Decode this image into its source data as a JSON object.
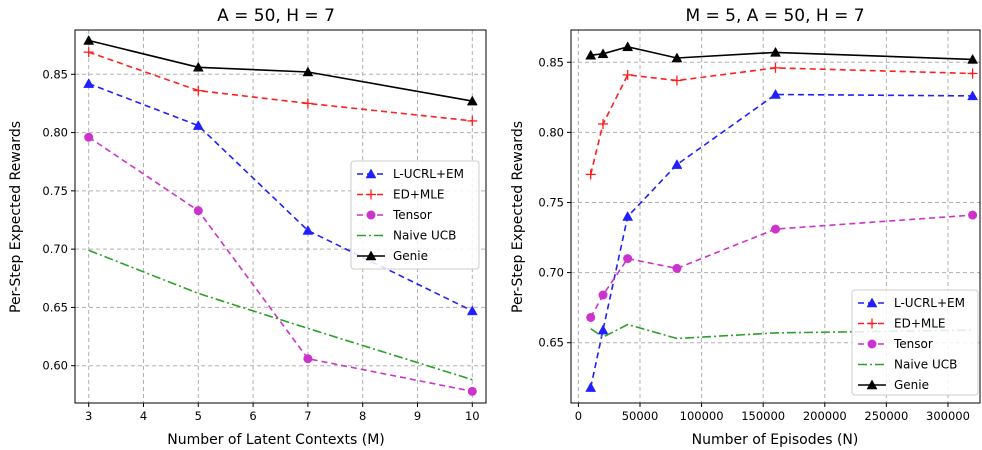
{
  "styles": {
    "L-UCRL+EM": {
      "color": "#1f1fff",
      "dash": "6,4",
      "marker": "triangle"
    },
    "ED+MLE": {
      "color": "#ff1f1f",
      "dash": "6,4",
      "marker": "plus"
    },
    "Tensor": {
      "color": "#cc33cc",
      "dash": "6,4",
      "marker": "circle"
    },
    "Naive UCB": {
      "color": "#2ca02c",
      "dash": "9,3,2,3",
      "marker": "none"
    },
    "Genie": {
      "color": "#000000",
      "dash": "",
      "marker": "triangle"
    }
  },
  "chart_data": [
    {
      "type": "line",
      "title": "A = 50, H = 7",
      "xlabel": "Number of Latent Contexts (M)",
      "ylabel": "Per-Step Expected Rewards",
      "xlim": [
        2.75,
        10.25
      ],
      "ylim": [
        0.568,
        0.888
      ],
      "xticks": [
        3,
        4,
        5,
        6,
        7,
        8,
        9,
        10
      ],
      "xtick_labels": [
        "3",
        "4",
        "5",
        "6",
        "7",
        "8",
        "9",
        "10"
      ],
      "yticks": [
        0.6,
        0.65,
        0.7,
        0.75,
        0.8,
        0.85
      ],
      "ytick_labels": [
        "0.60",
        "0.65",
        "0.70",
        "0.75",
        "0.80",
        "0.85"
      ],
      "grid": true,
      "legend_position": "center-right",
      "series": [
        {
          "name": "L-UCRL+EM",
          "x": [
            3,
            5,
            7,
            10
          ],
          "values": [
            0.842,
            0.806,
            0.716,
            0.647
          ]
        },
        {
          "name": "ED+MLE",
          "x": [
            3,
            5,
            7,
            10
          ],
          "values": [
            0.869,
            0.836,
            0.825,
            0.81
          ]
        },
        {
          "name": "Tensor",
          "x": [
            3,
            5,
            7,
            10
          ],
          "values": [
            0.796,
            0.733,
            0.606,
            0.578
          ]
        },
        {
          "name": "Naive UCB",
          "x": [
            3,
            5,
            7,
            10
          ],
          "values": [
            0.699,
            0.662,
            0.632,
            0.588
          ]
        },
        {
          "name": "Genie",
          "x": [
            3,
            5,
            7,
            10
          ],
          "values": [
            0.879,
            0.856,
            0.852,
            0.827
          ]
        }
      ]
    },
    {
      "type": "line",
      "title": "M = 5, A = 50, H = 7",
      "xlabel": "Number of Episodes (N)",
      "ylabel": "Per-Step Expected Rewards",
      "xlim": [
        -6000,
        326000
      ],
      "ylim": [
        0.607,
        0.873
      ],
      "xticks": [
        0,
        50000,
        100000,
        150000,
        200000,
        250000,
        300000
      ],
      "xtick_labels": [
        "0",
        "50000",
        "100000",
        "150000",
        "200000",
        "250000",
        "300000"
      ],
      "yticks": [
        0.65,
        0.7,
        0.75,
        0.8,
        0.85
      ],
      "ytick_labels": [
        "0.65",
        "0.70",
        "0.75",
        "0.80",
        "0.85"
      ],
      "grid": true,
      "legend_position": "lower-right",
      "series": [
        {
          "name": "L-UCRL+EM",
          "x": [
            10000,
            20000,
            40000,
            80000,
            160000,
            320000
          ],
          "values": [
            0.618,
            0.659,
            0.74,
            0.777,
            0.827,
            0.826
          ]
        },
        {
          "name": "ED+MLE",
          "x": [
            10000,
            20000,
            40000,
            80000,
            160000,
            320000
          ],
          "values": [
            0.77,
            0.806,
            0.841,
            0.837,
            0.846,
            0.842
          ]
        },
        {
          "name": "Tensor",
          "x": [
            10000,
            20000,
            40000,
            80000,
            160000,
            320000
          ],
          "values": [
            0.668,
            0.684,
            0.71,
            0.703,
            0.731,
            0.741
          ]
        },
        {
          "name": "Naive UCB",
          "x": [
            10000,
            20000,
            40000,
            80000,
            160000,
            320000
          ],
          "values": [
            0.66,
            0.654,
            0.663,
            0.653,
            0.657,
            0.659
          ]
        },
        {
          "name": "Genie",
          "x": [
            10000,
            20000,
            40000,
            80000,
            160000,
            320000
          ],
          "values": [
            0.855,
            0.856,
            0.861,
            0.853,
            0.857,
            0.852
          ]
        }
      ]
    }
  ]
}
